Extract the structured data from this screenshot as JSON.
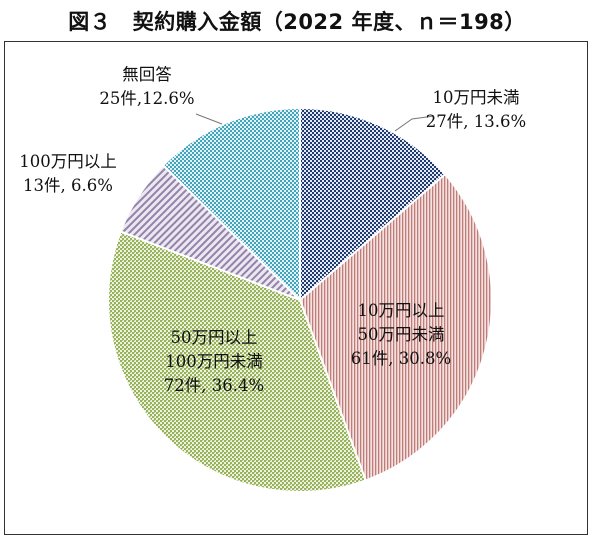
{
  "chart_data": {
    "type": "pie",
    "title": "図３　契約購入金額（2022 年度、ｎ＝198）",
    "slices": [
      {
        "label": "10万円未満",
        "count": 27,
        "count_text": "27件",
        "percent": 13.6,
        "percent_text": "13.6%",
        "color": "#1f3a6e",
        "pattern": "dots"
      },
      {
        "label": "10万円以上 50万円未満",
        "count": 61,
        "count_text": "61件",
        "percent": 30.8,
        "percent_text": "30.8%",
        "color": "#c98a86",
        "pattern": "vertical"
      },
      {
        "label": "50万円以上 100万円未満",
        "count": 72,
        "count_text": "72件",
        "percent": 36.4,
        "percent_text": "36.4%",
        "color": "#a3bd6a",
        "pattern": "grid"
      },
      {
        "label": "100万円以上",
        "count": 13,
        "count_text": "13件",
        "percent": 6.6,
        "percent_text": "6.6%",
        "color": "#9888ad",
        "pattern": "diagonal"
      },
      {
        "label": "無回答",
        "count": 25,
        "count_text": "25件",
        "percent": 12.6,
        "percent_text": "12.6%",
        "color": "#4aa9bf",
        "pattern": "dots"
      }
    ],
    "labels": [
      {
        "lines": [
          "10万円未満",
          "27件, 13.6%"
        ]
      },
      {
        "lines": [
          "10万円以上",
          "50万円未満",
          "61件, 30.8%"
        ]
      },
      {
        "lines": [
          "50万円以上",
          "100万円未満",
          "72件, 36.4%"
        ]
      },
      {
        "lines": [
          "100万円以上",
          "13件, 6.6%"
        ]
      },
      {
        "lines": [
          "無回答",
          "25件,12.6%"
        ]
      }
    ],
    "start_angle_deg": 0,
    "direction": "clockwise",
    "legend": "none"
  }
}
